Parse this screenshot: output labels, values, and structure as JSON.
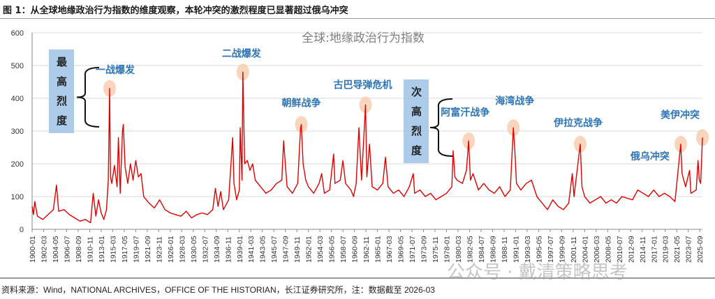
{
  "figure_title": "图 1：从全球地缘政治行为指数的维度观察，本轮冲突的激烈程度已显著超过俄乌冲突",
  "source_note": "资料来源：Wind，NATIONAL ARCHIVES，OFFICE OF THE HISTORIAN，长江证券研究所，注：数据截至 2026-03",
  "watermark": "公众号 · 戴清策略思考",
  "colors": {
    "line": "#e00000",
    "annotation": "#2e75b6",
    "box": "#9dc3e6",
    "highlight": "#f8cbad",
    "chart_title": "#7f7f7f"
  },
  "chart_data": {
    "type": "line",
    "title": "全球:地缘政治行为指数",
    "xlabel": "",
    "ylabel": "",
    "ylim": [
      0,
      600
    ],
    "yticks": [
      0,
      100,
      200,
      300,
      400,
      500,
      600
    ],
    "xlim": [
      "1900-01",
      "2026-03"
    ],
    "grid": "horizontal",
    "xtick_labels": [
      "1900-01",
      "1902-03",
      "1904-05",
      "1906-07",
      "1908-09",
      "1910-11",
      "1913-01",
      "1915-03",
      "1917-05",
      "1919-07",
      "1921-09",
      "1923-11",
      "1926-01",
      "1928-03",
      "1930-05",
      "1932-07",
      "1934-09",
      "1936-11",
      "1939-01",
      "1941-03",
      "1943-05",
      "1945-07",
      "1947-09",
      "1949-11",
      "1952-01",
      "1954-03",
      "1956-05",
      "1958-07",
      "1960-09",
      "1962-11",
      "1965-01",
      "1967-03",
      "1969-05",
      "1971-07",
      "1973-09",
      "1975-11",
      "1978-01",
      "1980-03",
      "1982-05",
      "1984-07",
      "1986-09",
      "1988-11",
      "1991-01",
      "1993-03",
      "1995-05",
      "1997-07",
      "1999-09",
      "2001-11",
      "2004-01",
      "2006-03",
      "2008-05",
      "2010-07",
      "2012-09",
      "2014-11",
      "2017-01",
      "2019-03",
      "2021-05",
      "2023-07",
      "2025-09"
    ],
    "series": [
      {
        "points": [
          [
            "1900-01",
            70
          ],
          [
            "1900-04",
            45
          ],
          [
            "1900-07",
            85
          ],
          [
            "1901-01",
            40
          ],
          [
            "1902-01",
            30
          ],
          [
            "1903-01",
            45
          ],
          [
            "1904-01",
            60
          ],
          [
            "1904-08",
            135
          ],
          [
            "1905-01",
            55
          ],
          [
            "1906-01",
            60
          ],
          [
            "1907-01",
            45
          ],
          [
            "1908-01",
            35
          ],
          [
            "1909-01",
            25
          ],
          [
            "1910-01",
            30
          ],
          [
            "1911-01",
            20
          ],
          [
            "1911-07",
            110
          ],
          [
            "1912-01",
            40
          ],
          [
            "1912-07",
            90
          ],
          [
            "1913-01",
            50
          ],
          [
            "1913-07",
            30
          ],
          [
            "1914-01",
            60
          ],
          [
            "1914-05",
            150
          ],
          [
            "1914-08",
            430
          ],
          [
            "1914-10",
            160
          ],
          [
            "1915-01",
            140
          ],
          [
            "1915-07",
            195
          ],
          [
            "1916-01",
            130
          ],
          [
            "1916-04",
            280
          ],
          [
            "1916-08",
            110
          ],
          [
            "1917-01",
            300
          ],
          [
            "1917-03",
            320
          ],
          [
            "1917-07",
            190
          ],
          [
            "1918-01",
            140
          ],
          [
            "1918-07",
            200
          ],
          [
            "1919-01",
            150
          ],
          [
            "1919-07",
            210
          ],
          [
            "1920-01",
            160
          ],
          [
            "1920-07",
            170
          ],
          [
            "1921-01",
            100
          ],
          [
            "1922-01",
            80
          ],
          [
            "1923-01",
            65
          ],
          [
            "1924-01",
            90
          ],
          [
            "1925-01",
            60
          ],
          [
            "1926-01",
            50
          ],
          [
            "1927-01",
            45
          ],
          [
            "1928-01",
            40
          ],
          [
            "1929-01",
            55
          ],
          [
            "1930-01",
            35
          ],
          [
            "1931-01",
            45
          ],
          [
            "1932-01",
            50
          ],
          [
            "1933-01",
            45
          ],
          [
            "1934-01",
            60
          ],
          [
            "1934-07",
            125
          ],
          [
            "1935-01",
            70
          ],
          [
            "1935-07",
            115
          ],
          [
            "1936-01",
            60
          ],
          [
            "1937-01",
            90
          ],
          [
            "1937-10",
            280
          ],
          [
            "1938-01",
            140
          ],
          [
            "1938-07",
            90
          ],
          [
            "1939-01",
            120
          ],
          [
            "1939-03",
            310
          ],
          [
            "1939-07",
            150
          ],
          [
            "1939-09",
            480
          ],
          [
            "1940-01",
            200
          ],
          [
            "1940-07",
            210
          ],
          [
            "1941-01",
            180
          ],
          [
            "1941-07",
            200
          ],
          [
            "1942-01",
            150
          ],
          [
            "1943-01",
            130
          ],
          [
            "1944-01",
            110
          ],
          [
            "1945-01",
            120
          ],
          [
            "1946-01",
            140
          ],
          [
            "1947-01",
            150
          ],
          [
            "1947-05",
            270
          ],
          [
            "1947-10",
            180
          ],
          [
            "1948-01",
            130
          ],
          [
            "1949-01",
            110
          ],
          [
            "1950-01",
            140
          ],
          [
            "1950-07",
            305
          ],
          [
            "1950-09",
            320
          ],
          [
            "1951-01",
            200
          ],
          [
            "1951-07",
            150
          ],
          [
            "1952-01",
            130
          ],
          [
            "1953-01",
            110
          ],
          [
            "1954-01",
            140
          ],
          [
            "1954-07",
            170
          ],
          [
            "1955-01",
            110
          ],
          [
            "1956-01",
            120
          ],
          [
            "1956-10",
            230
          ],
          [
            "1957-01",
            140
          ],
          [
            "1958-01",
            150
          ],
          [
            "1958-07",
            210
          ],
          [
            "1959-01",
            140
          ],
          [
            "1960-01",
            120
          ],
          [
            "1960-07",
            100
          ],
          [
            "1961-01",
            140
          ],
          [
            "1961-07",
            310
          ],
          [
            "1962-01",
            150
          ],
          [
            "1962-10",
            380
          ],
          [
            "1963-01",
            160
          ],
          [
            "1963-07",
            260
          ],
          [
            "1964-01",
            130
          ],
          [
            "1965-01",
            120
          ],
          [
            "1966-01",
            140
          ],
          [
            "1966-07",
            220
          ],
          [
            "1967-01",
            130
          ],
          [
            "1968-01",
            110
          ],
          [
            "1969-01",
            120
          ],
          [
            "1970-01",
            100
          ],
          [
            "1971-01",
            130
          ],
          [
            "1971-10",
            170
          ],
          [
            "1972-01",
            110
          ],
          [
            "1973-01",
            120
          ],
          [
            "1974-01",
            100
          ],
          [
            "1975-01",
            110
          ],
          [
            "1976-01",
            90
          ],
          [
            "1977-01",
            100
          ],
          [
            "1978-01",
            110
          ],
          [
            "1979-01",
            130
          ],
          [
            "1979-04",
            240
          ],
          [
            "1979-08",
            160
          ],
          [
            "1980-01",
            150
          ],
          [
            "1981-01",
            140
          ],
          [
            "1981-10",
            180
          ],
          [
            "1982-03",
            270
          ],
          [
            "1982-07",
            150
          ],
          [
            "1983-01",
            170
          ],
          [
            "1984-01",
            120
          ],
          [
            "1985-01",
            140
          ],
          [
            "1986-01",
            120
          ],
          [
            "1987-01",
            110
          ],
          [
            "1988-01",
            130
          ],
          [
            "1989-01",
            100
          ],
          [
            "1990-01",
            120
          ],
          [
            "1990-08",
            310
          ],
          [
            "1990-11",
            250
          ],
          [
            "1991-03",
            140
          ],
          [
            "1992-01",
            120
          ],
          [
            "1993-01",
            140
          ],
          [
            "1994-01",
            150
          ],
          [
            "1995-01",
            100
          ],
          [
            "1996-01",
            80
          ],
          [
            "1997-01",
            60
          ],
          [
            "1998-01",
            90
          ],
          [
            "1999-01",
            70
          ],
          [
            "2000-01",
            60
          ],
          [
            "2001-01",
            80
          ],
          [
            "2001-09",
            170
          ],
          [
            "2002-01",
            100
          ],
          [
            "2003-03",
            260
          ],
          [
            "2003-07",
            130
          ],
          [
            "2004-01",
            100
          ],
          [
            "2005-01",
            80
          ],
          [
            "2006-01",
            90
          ],
          [
            "2007-01",
            100
          ],
          [
            "2008-01",
            80
          ],
          [
            "2009-01",
            90
          ],
          [
            "2010-01",
            80
          ],
          [
            "2011-01",
            100
          ],
          [
            "2012-01",
            95
          ],
          [
            "2013-01",
            90
          ],
          [
            "2014-01",
            120
          ],
          [
            "2015-01",
            110
          ],
          [
            "2016-01",
            100
          ],
          [
            "2017-01",
            120
          ],
          [
            "2018-01",
            100
          ],
          [
            "2019-01",
            110
          ],
          [
            "2020-01",
            100
          ],
          [
            "2021-01",
            85
          ],
          [
            "2022-02",
            260
          ],
          [
            "2022-05",
            170
          ],
          [
            "2023-01",
            130
          ],
          [
            "2023-10",
            180
          ],
          [
            "2024-01",
            110
          ],
          [
            "2025-01",
            120
          ],
          [
            "2025-05",
            210
          ],
          [
            "2025-08",
            150
          ],
          [
            "2025-11",
            140
          ],
          [
            "2026-03",
            280
          ]
        ]
      }
    ],
    "annotations": [
      {
        "label": "一战爆发",
        "date": "1914-08",
        "value": 430
      },
      {
        "label": "二战爆发",
        "date": "1939-09",
        "value": 480
      },
      {
        "label": "朝鲜战争",
        "date": "1950-09",
        "value": 320
      },
      {
        "label": "古巴导弹危机",
        "date": "1962-10",
        "value": 380
      },
      {
        "label": "阿富汗战争",
        "date": "1982-03",
        "value": 270
      },
      {
        "label": "海湾战争",
        "date": "1990-08",
        "value": 310
      },
      {
        "label": "伊拉克战争",
        "date": "2003-03",
        "value": 260
      },
      {
        "label": "俄乌冲突",
        "date": "2022-02",
        "value": 260
      },
      {
        "label": "美伊冲突",
        "date": "2026-03",
        "value": 280
      }
    ],
    "groups": [
      {
        "label": "最高烈度",
        "chars": [
          "最",
          "高",
          "烈",
          "度"
        ]
      },
      {
        "label": "次高烈度",
        "chars": [
          "次",
          "高",
          "烈",
          "度"
        ]
      }
    ]
  }
}
